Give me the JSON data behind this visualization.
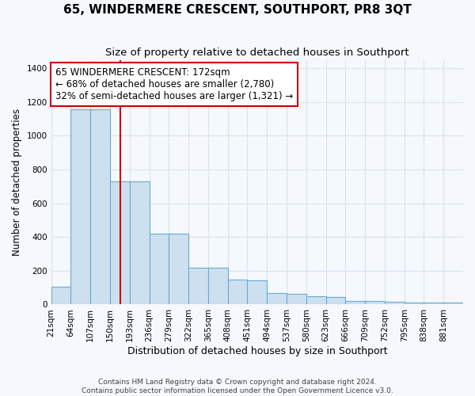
{
  "title": "65, WINDERMERE CRESCENT, SOUTHPORT, PR8 3QT",
  "subtitle": "Size of property relative to detached houses in Southport",
  "xlabel": "Distribution of detached houses by size in Southport",
  "ylabel": "Number of detached properties",
  "footnote1": "Contains HM Land Registry data © Crown copyright and database right 2024.",
  "footnote2": "Contains public sector information licensed under the Open Government Licence v3.0.",
  "categories": [
    "21sqm",
    "64sqm",
    "107sqm",
    "150sqm",
    "193sqm",
    "236sqm",
    "279sqm",
    "322sqm",
    "365sqm",
    "408sqm",
    "451sqm",
    "494sqm",
    "537sqm",
    "580sqm",
    "623sqm",
    "666sqm",
    "709sqm",
    "752sqm",
    "795sqm",
    "838sqm",
    "881sqm"
  ],
  "values": [
    105,
    1155,
    1155,
    730,
    730,
    420,
    420,
    220,
    220,
    150,
    145,
    70,
    65,
    50,
    45,
    22,
    20,
    15,
    12,
    10,
    12
  ],
  "bar_color": "#cce0f0",
  "bar_edge_color": "#6aaad4",
  "annotation_line1": "65 WINDERMERE CRESCENT: 172sqm",
  "annotation_line2": "← 68% of detached houses are smaller (2,780)",
  "annotation_line3": "32% of semi-detached houses are larger (1,321) →",
  "annotation_box_color": "white",
  "annotation_box_edge": "#cc0000",
  "vline_color": "#cc0000",
  "vline_bin": 3,
  "ylim": [
    0,
    1450
  ],
  "num_bins": 21,
  "bg_color": "#f5f8fc",
  "grid_color": "#d8e4f0",
  "title_fontsize": 11,
  "subtitle_fontsize": 9.5,
  "xlabel_fontsize": 9,
  "ylabel_fontsize": 8.5,
  "tick_fontsize": 7.5,
  "footnote_fontsize": 6.5,
  "annot_fontsize": 8.5
}
